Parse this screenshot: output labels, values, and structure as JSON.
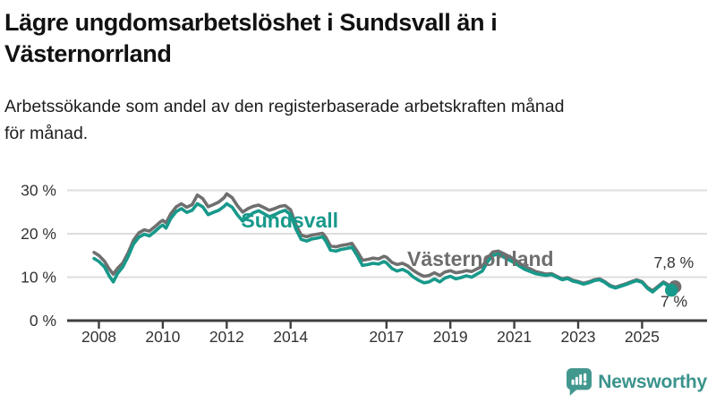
{
  "header": {
    "title": "Lägre ungdomsarbetslöshet i Sundsvall än i Västernorrland",
    "title_lines": [
      "Lägre ungdomsarbetslöshet i Sundsvall än i",
      "Västernorrland"
    ],
    "subtitle": "Arbetssökande som andel av den registerbaserade arbetskraften månad för månad.",
    "subtitle_lines": [
      "Arbetssökande som andel av den registerbaserade arbetskraften månad",
      "för månad."
    ]
  },
  "chart_data": {
    "type": "line",
    "title": "Lägre ungdomsarbetslöshet i Sundsvall än i Västernorrland",
    "xlabel": "",
    "ylabel": "",
    "unit": "%",
    "grid": true,
    "legend_position": "inline-labels",
    "xlim": [
      2007.8,
      2026.3
    ],
    "ylim": [
      0,
      33
    ],
    "x_ticks": [
      {
        "value": 2008,
        "label": "2008"
      },
      {
        "value": 2010,
        "label": "2010"
      },
      {
        "value": 2012,
        "label": "2012"
      },
      {
        "value": 2014,
        "label": "2014"
      },
      {
        "value": 2017,
        "label": "2017"
      },
      {
        "value": 2019,
        "label": "2019"
      },
      {
        "value": 2021,
        "label": "2021"
      },
      {
        "value": 2023,
        "label": "2023"
      },
      {
        "value": 2025,
        "label": "2025"
      }
    ],
    "y_ticks": [
      {
        "value": 0,
        "label": "0 %"
      },
      {
        "value": 10,
        "label": "10 %"
      },
      {
        "value": 20,
        "label": "20 %"
      },
      {
        "value": 30,
        "label": "30 %"
      }
    ],
    "colors": {
      "sundsvall": "#17998b",
      "vasternorrland": "#6f6f6f",
      "grid": "#dedede",
      "axis": "#3f3f3f",
      "tick_text": "#333333",
      "value_label_text": "#333333"
    },
    "series": [
      {
        "name": "Västernorrland",
        "slug": "vasternorrland",
        "color": "#6f6f6f",
        "latest_label": "7,8 %",
        "latest_value": 7.8,
        "end_dot_offset_x": 4,
        "points": [
          [
            2007.85,
            15.7
          ],
          [
            2008.0,
            15.0
          ],
          [
            2008.17,
            13.7
          ],
          [
            2008.33,
            11.8
          ],
          [
            2008.45,
            10.7
          ],
          [
            2008.58,
            12.0
          ],
          [
            2008.75,
            13.3
          ],
          [
            2008.92,
            15.7
          ],
          [
            2009.08,
            18.5
          ],
          [
            2009.25,
            20.2
          ],
          [
            2009.42,
            20.9
          ],
          [
            2009.58,
            20.6
          ],
          [
            2009.75,
            21.6
          ],
          [
            2009.92,
            22.7
          ],
          [
            2010.0,
            23.1
          ],
          [
            2010.1,
            22.5
          ],
          [
            2010.25,
            24.6
          ],
          [
            2010.42,
            26.2
          ],
          [
            2010.58,
            26.9
          ],
          [
            2010.75,
            26.1
          ],
          [
            2010.92,
            26.7
          ],
          [
            2011.08,
            28.9
          ],
          [
            2011.25,
            28.1
          ],
          [
            2011.42,
            26.2
          ],
          [
            2011.58,
            26.7
          ],
          [
            2011.75,
            27.3
          ],
          [
            2011.92,
            28.3
          ],
          [
            2012.0,
            29.2
          ],
          [
            2012.17,
            28.3
          ],
          [
            2012.33,
            26.5
          ],
          [
            2012.5,
            25.0
          ],
          [
            2012.67,
            25.8
          ],
          [
            2012.83,
            26.3
          ],
          [
            2013.0,
            26.6
          ],
          [
            2013.17,
            26.0
          ],
          [
            2013.33,
            25.4
          ],
          [
            2013.5,
            25.8
          ],
          [
            2013.67,
            26.3
          ],
          [
            2013.83,
            26.5
          ],
          [
            2014.0,
            25.5
          ],
          [
            2014.17,
            22.0
          ],
          [
            2014.33,
            19.7
          ],
          [
            2014.5,
            19.3
          ],
          [
            2014.67,
            19.7
          ],
          [
            2014.83,
            19.9
          ],
          [
            2015.0,
            20.1
          ],
          [
            2015.1,
            19.2
          ],
          [
            2015.25,
            17.2
          ],
          [
            2015.42,
            17.0
          ],
          [
            2015.58,
            17.3
          ],
          [
            2015.75,
            17.5
          ],
          [
            2015.92,
            17.8
          ],
          [
            2016.08,
            16.0
          ],
          [
            2016.25,
            13.9
          ],
          [
            2016.42,
            14.1
          ],
          [
            2016.58,
            14.4
          ],
          [
            2016.75,
            14.2
          ],
          [
            2016.92,
            14.8
          ],
          [
            2017.0,
            14.6
          ],
          [
            2017.17,
            13.4
          ],
          [
            2017.33,
            12.9
          ],
          [
            2017.5,
            13.2
          ],
          [
            2017.67,
            12.6
          ],
          [
            2017.83,
            11.6
          ],
          [
            2018.0,
            10.8
          ],
          [
            2018.17,
            10.2
          ],
          [
            2018.33,
            10.4
          ],
          [
            2018.5,
            11.0
          ],
          [
            2018.67,
            10.4
          ],
          [
            2018.83,
            11.2
          ],
          [
            2019.0,
            11.5
          ],
          [
            2019.17,
            11.0
          ],
          [
            2019.33,
            11.2
          ],
          [
            2019.5,
            11.5
          ],
          [
            2019.67,
            11.3
          ],
          [
            2019.83,
            11.9
          ],
          [
            2020.0,
            12.5
          ],
          [
            2020.17,
            14.5
          ],
          [
            2020.33,
            15.8
          ],
          [
            2020.5,
            16.0
          ],
          [
            2020.67,
            15.4
          ],
          [
            2020.83,
            14.8
          ],
          [
            2021.0,
            14.1
          ],
          [
            2021.17,
            13.2
          ],
          [
            2021.33,
            12.4
          ],
          [
            2021.5,
            11.9
          ],
          [
            2021.67,
            11.3
          ],
          [
            2021.83,
            11.0
          ],
          [
            2022.0,
            10.7
          ],
          [
            2022.17,
            10.8
          ],
          [
            2022.33,
            10.2
          ],
          [
            2022.5,
            9.6
          ],
          [
            2022.67,
            9.9
          ],
          [
            2022.83,
            9.3
          ],
          [
            2023.0,
            9.0
          ],
          [
            2023.17,
            8.6
          ],
          [
            2023.33,
            8.9
          ],
          [
            2023.5,
            9.4
          ],
          [
            2023.67,
            9.6
          ],
          [
            2023.83,
            9.0
          ],
          [
            2024.0,
            8.1
          ],
          [
            2024.17,
            7.7
          ],
          [
            2024.33,
            8.1
          ],
          [
            2024.5,
            8.5
          ],
          [
            2024.67,
            9.0
          ],
          [
            2024.83,
            9.4
          ],
          [
            2025.0,
            9.0
          ],
          [
            2025.17,
            7.6
          ],
          [
            2025.33,
            6.9
          ],
          [
            2025.5,
            7.9
          ],
          [
            2025.67,
            8.9
          ],
          [
            2025.83,
            8.2
          ],
          [
            2025.92,
            7.8
          ]
        ]
      },
      {
        "name": "Sundsvall",
        "slug": "sundsvall",
        "color": "#17998b",
        "latest_label": "7 %",
        "latest_value": 7.0,
        "end_dot_offset_x": 0,
        "points": [
          [
            2007.85,
            14.3
          ],
          [
            2008.0,
            13.6
          ],
          [
            2008.17,
            12.4
          ],
          [
            2008.33,
            10.2
          ],
          [
            2008.45,
            8.9
          ],
          [
            2008.58,
            10.8
          ],
          [
            2008.75,
            12.4
          ],
          [
            2008.92,
            14.8
          ],
          [
            2009.08,
            17.6
          ],
          [
            2009.25,
            19.2
          ],
          [
            2009.42,
            19.9
          ],
          [
            2009.58,
            19.5
          ],
          [
            2009.75,
            20.5
          ],
          [
            2009.92,
            21.6
          ],
          [
            2010.0,
            22.0
          ],
          [
            2010.1,
            21.3
          ],
          [
            2010.25,
            23.5
          ],
          [
            2010.42,
            25.1
          ],
          [
            2010.58,
            25.8
          ],
          [
            2010.75,
            24.9
          ],
          [
            2010.92,
            25.4
          ],
          [
            2011.08,
            26.9
          ],
          [
            2011.25,
            26.2
          ],
          [
            2011.42,
            24.4
          ],
          [
            2011.58,
            24.9
          ],
          [
            2011.75,
            25.4
          ],
          [
            2011.92,
            26.3
          ],
          [
            2012.0,
            26.9
          ],
          [
            2012.17,
            26.1
          ],
          [
            2012.33,
            24.4
          ],
          [
            2012.5,
            22.9
          ],
          [
            2012.67,
            23.9
          ],
          [
            2012.83,
            24.8
          ],
          [
            2013.0,
            25.3
          ],
          [
            2013.17,
            24.6
          ],
          [
            2013.33,
            23.9
          ],
          [
            2013.5,
            24.4
          ],
          [
            2013.67,
            25.0
          ],
          [
            2013.83,
            25.4
          ],
          [
            2014.0,
            24.4
          ],
          [
            2014.17,
            21.0
          ],
          [
            2014.33,
            18.7
          ],
          [
            2014.5,
            18.3
          ],
          [
            2014.67,
            18.8
          ],
          [
            2014.83,
            19.0
          ],
          [
            2015.0,
            19.3
          ],
          [
            2015.1,
            18.3
          ],
          [
            2015.25,
            16.2
          ],
          [
            2015.42,
            16.0
          ],
          [
            2015.58,
            16.4
          ],
          [
            2015.75,
            16.6
          ],
          [
            2015.92,
            16.9
          ],
          [
            2016.08,
            15.0
          ],
          [
            2016.25,
            12.7
          ],
          [
            2016.42,
            12.9
          ],
          [
            2016.58,
            13.2
          ],
          [
            2016.75,
            13.0
          ],
          [
            2016.92,
            13.6
          ],
          [
            2017.0,
            13.3
          ],
          [
            2017.17,
            12.0
          ],
          [
            2017.33,
            11.4
          ],
          [
            2017.5,
            11.8
          ],
          [
            2017.67,
            11.2
          ],
          [
            2017.83,
            10.1
          ],
          [
            2018.0,
            9.3
          ],
          [
            2018.17,
            8.7
          ],
          [
            2018.33,
            8.9
          ],
          [
            2018.5,
            9.6
          ],
          [
            2018.67,
            8.9
          ],
          [
            2018.83,
            9.8
          ],
          [
            2019.0,
            10.2
          ],
          [
            2019.17,
            9.6
          ],
          [
            2019.33,
            9.9
          ],
          [
            2019.5,
            10.3
          ],
          [
            2019.67,
            10.0
          ],
          [
            2019.83,
            10.7
          ],
          [
            2020.0,
            11.4
          ],
          [
            2020.17,
            13.6
          ],
          [
            2020.33,
            15.0
          ],
          [
            2020.5,
            15.3
          ],
          [
            2020.67,
            14.6
          ],
          [
            2020.83,
            14.0
          ],
          [
            2021.0,
            13.3
          ],
          [
            2021.17,
            12.5
          ],
          [
            2021.33,
            11.8
          ],
          [
            2021.5,
            11.3
          ],
          [
            2021.67,
            10.8
          ],
          [
            2021.83,
            10.6
          ],
          [
            2022.0,
            10.4
          ],
          [
            2022.17,
            10.6
          ],
          [
            2022.33,
            10.0
          ],
          [
            2022.5,
            9.4
          ],
          [
            2022.67,
            9.7
          ],
          [
            2022.83,
            9.1
          ],
          [
            2023.0,
            8.8
          ],
          [
            2023.17,
            8.4
          ],
          [
            2023.33,
            8.7
          ],
          [
            2023.5,
            9.2
          ],
          [
            2023.67,
            9.4
          ],
          [
            2023.83,
            8.8
          ],
          [
            2024.0,
            7.9
          ],
          [
            2024.17,
            7.5
          ],
          [
            2024.33,
            7.9
          ],
          [
            2024.5,
            8.3
          ],
          [
            2024.67,
            8.8
          ],
          [
            2024.83,
            9.2
          ],
          [
            2025.0,
            8.8
          ],
          [
            2025.17,
            7.4
          ],
          [
            2025.33,
            6.6
          ],
          [
            2025.5,
            7.7
          ],
          [
            2025.67,
            8.7
          ],
          [
            2025.83,
            7.9
          ],
          [
            2025.92,
            7.0
          ]
        ]
      }
    ],
    "annotations": [
      {
        "id": "series-label-sundsvall",
        "text": "Sundsvall",
        "x": 2012.45,
        "y": 21.4,
        "anchor": "start",
        "size": 23,
        "weight": 700,
        "color": "#17998b"
      },
      {
        "id": "series-label-vasternorrland",
        "text": "Västernorrland",
        "x": 2017.65,
        "y": 12.55,
        "anchor": "start",
        "size": 23,
        "weight": 700,
        "color": "#6e6e6e"
      },
      {
        "id": "end-value-label-vasternorrland",
        "text": "7,8 %",
        "x": 2026.62,
        "y": 12.2,
        "anchor": "end",
        "size": 17.5,
        "weight": 400,
        "color": "#333333"
      },
      {
        "id": "end-value-label-sundsvall",
        "text": "7 %",
        "x": 2026.42,
        "y": 3.2,
        "anchor": "end",
        "size": 17.5,
        "weight": 400,
        "color": "#333333"
      }
    ]
  },
  "footer": {
    "brand": "Newsworthy",
    "logo_color": "#42988f",
    "wordmark_color": "#3b938d"
  }
}
